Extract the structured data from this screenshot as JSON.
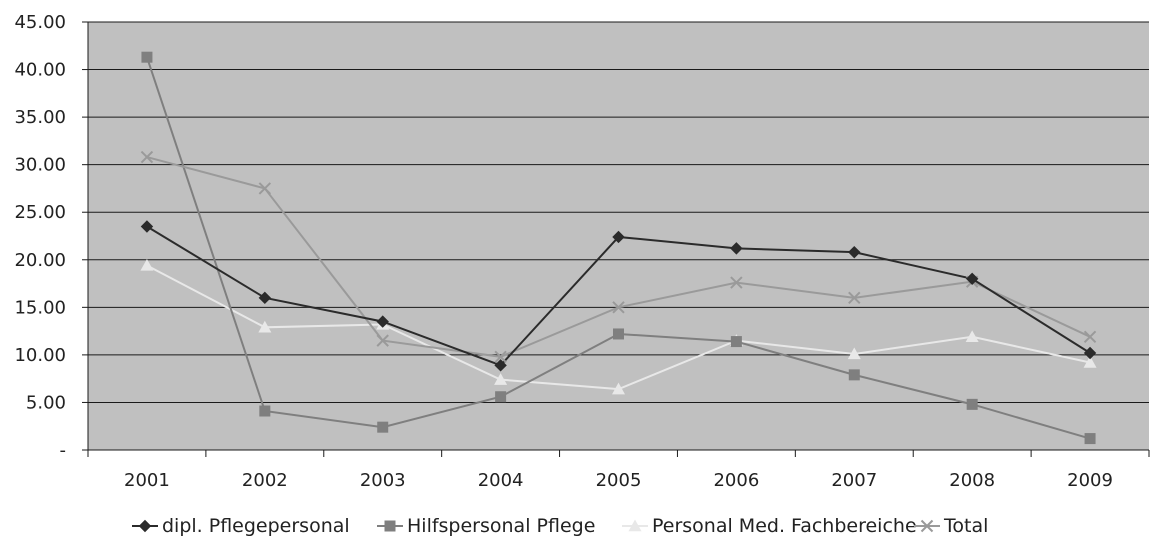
{
  "chart_data": {
    "type": "line",
    "categories": [
      "2001",
      "2002",
      "2003",
      "2004",
      "2005",
      "2006",
      "2007",
      "2008",
      "2009"
    ],
    "y_tick_labels": [
      "-",
      "5.00",
      "10.00",
      "15.00",
      "20.00",
      "25.00",
      "30.00",
      "35.00",
      "40.00",
      "45.00"
    ],
    "y_ticks": [
      0,
      5,
      10,
      15,
      20,
      25,
      30,
      35,
      40,
      45
    ],
    "ylim": [
      0,
      45
    ],
    "grid": true,
    "legend_position": "bottom",
    "series": [
      {
        "name": "dipl. Pflegepersonal",
        "values": [
          23.5,
          16.0,
          13.5,
          8.9,
          22.4,
          21.2,
          20.8,
          18.0,
          10.2
        ],
        "color": "#2b2b2b",
        "marker": "diamond"
      },
      {
        "name": "Hilfspersonal Pflege",
        "values": [
          41.3,
          4.1,
          2.4,
          5.6,
          12.2,
          11.4,
          7.9,
          4.8,
          1.2
        ],
        "color": "#7f7f7f",
        "marker": "square"
      },
      {
        "name": "Personal Med. Fachbereiche",
        "values": [
          19.4,
          12.9,
          13.2,
          7.4,
          6.4,
          11.5,
          10.1,
          11.9,
          9.2
        ],
        "color": "#e8e8e8",
        "marker": "triangle"
      },
      {
        "name": "Total",
        "values": [
          30.8,
          27.5,
          11.5,
          9.8,
          15.0,
          17.6,
          16.0,
          17.7,
          11.9
        ],
        "color": "#9a9a9a",
        "marker": "x"
      }
    ]
  }
}
